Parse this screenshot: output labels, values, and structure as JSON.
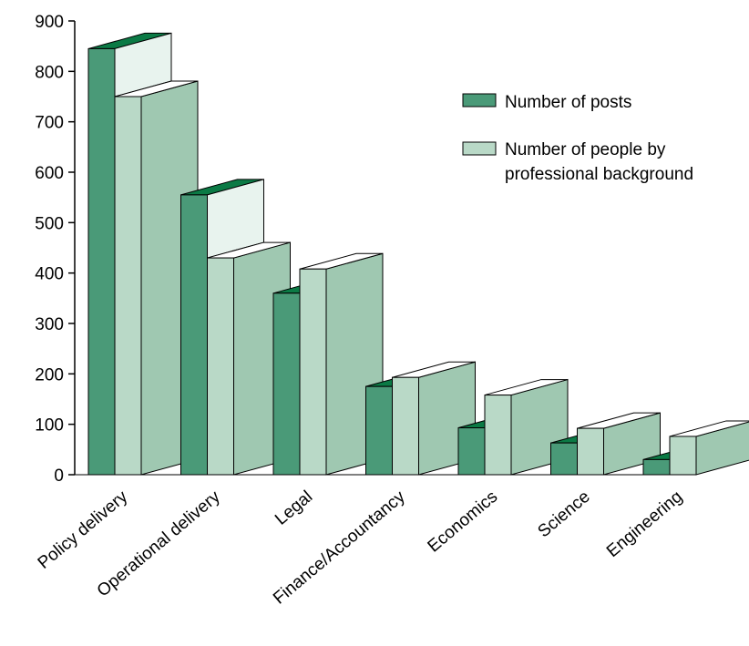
{
  "chart_data": {
    "type": "bar",
    "title": "",
    "xlabel": "",
    "ylabel": "",
    "ylim": [
      0,
      900
    ],
    "yticks": [
      0,
      100,
      200,
      300,
      400,
      500,
      600,
      700,
      800,
      900
    ],
    "grid": false,
    "legend_position": "right",
    "categories": [
      "Policy delivery",
      "Operational delivery",
      "Legal",
      "Finance/Accountancy",
      "Economics",
      "Science",
      "Engineering"
    ],
    "series": [
      {
        "name": "Number of posts",
        "values": [
          845,
          555,
          360,
          175,
          93,
          63,
          30
        ],
        "color": "#4a9a78",
        "top_color": "#0b7a45"
      },
      {
        "name": "Number of people by professional background",
        "values": [
          750,
          430,
          408,
          193,
          158,
          92,
          76
        ],
        "color": "#b9d9c7",
        "side_color": "#9fc8b1",
        "top_color": "#ffffff"
      }
    ]
  }
}
